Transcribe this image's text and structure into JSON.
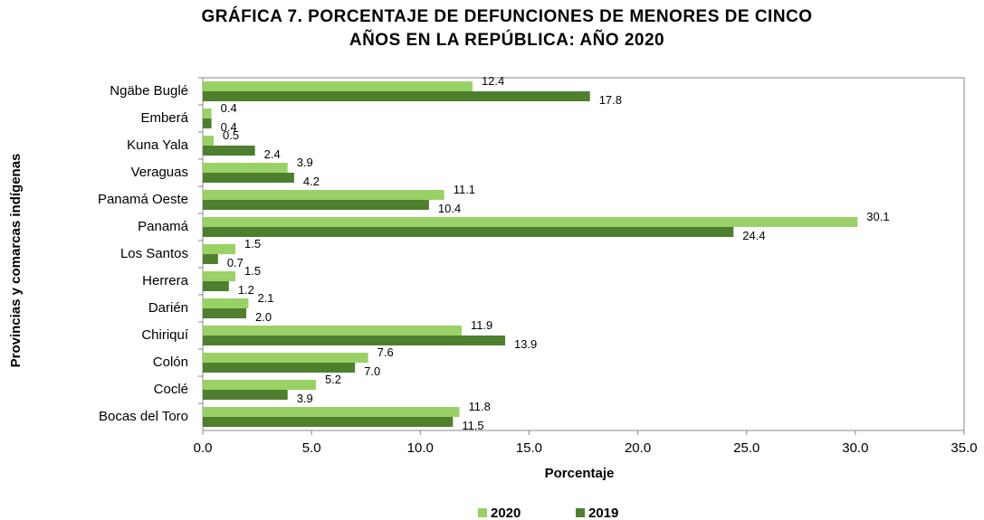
{
  "chart_data": {
    "type": "hbar",
    "title": [
      "GRÁFICA 7. PORCENTAJE DE DEFUNCIONES DE MENORES DE CINCO",
      "AÑOS EN LA REPÚBLICA: AÑO 2020"
    ],
    "xlabel": "Porcentaje",
    "ylabel": "Provincias y comarcas indígenas",
    "categories": [
      "Ngäbe Buglé",
      "Emberá",
      "Kuna Yala",
      "Veraguas",
      "Panamá Oeste",
      "Panamá",
      "Los Santos",
      "Herrera",
      "Darién",
      "Chiriquí",
      "Colón",
      "Coclé",
      "Bocas del Toro"
    ],
    "series": [
      {
        "name": "2020",
        "color": "#99d166",
        "values": [
          12.4,
          0.4,
          0.5,
          3.9,
          11.1,
          30.1,
          1.5,
          1.5,
          2.1,
          11.9,
          7.6,
          5.2,
          11.8
        ],
        "value_labels": [
          "12.4",
          "0.4",
          "0.5",
          "3.9",
          "11.1",
          "30.1",
          "1.5",
          "1.5",
          "2.1",
          "11.9",
          "7.6",
          "5.2",
          "11.8"
        ]
      },
      {
        "name": "2019",
        "color": "#4e7f2e",
        "values": [
          17.8,
          0.4,
          2.4,
          4.2,
          10.4,
          24.4,
          0.7,
          1.2,
          2.0,
          13.9,
          7.0,
          3.9,
          11.5
        ],
        "value_labels": [
          "17.8",
          "0.4",
          "2.4",
          "4.2",
          "10.4",
          "24.4",
          "0.7",
          "1.2",
          "2.0",
          "13.9",
          "7.0",
          "3.9",
          "11.5"
        ]
      }
    ],
    "xlim": [
      0,
      35
    ],
    "xticks": [
      {
        "value": 0,
        "label": "0.0"
      },
      {
        "value": 5,
        "label": "5.0"
      },
      {
        "value": 10,
        "label": "10.0"
      },
      {
        "value": 15,
        "label": "15.0"
      },
      {
        "value": 20,
        "label": "20.0"
      },
      {
        "value": 25,
        "label": "25.0"
      },
      {
        "value": 30,
        "label": "30.0"
      },
      {
        "value": 35,
        "label": "35.0"
      }
    ],
    "legend": "bottom"
  }
}
